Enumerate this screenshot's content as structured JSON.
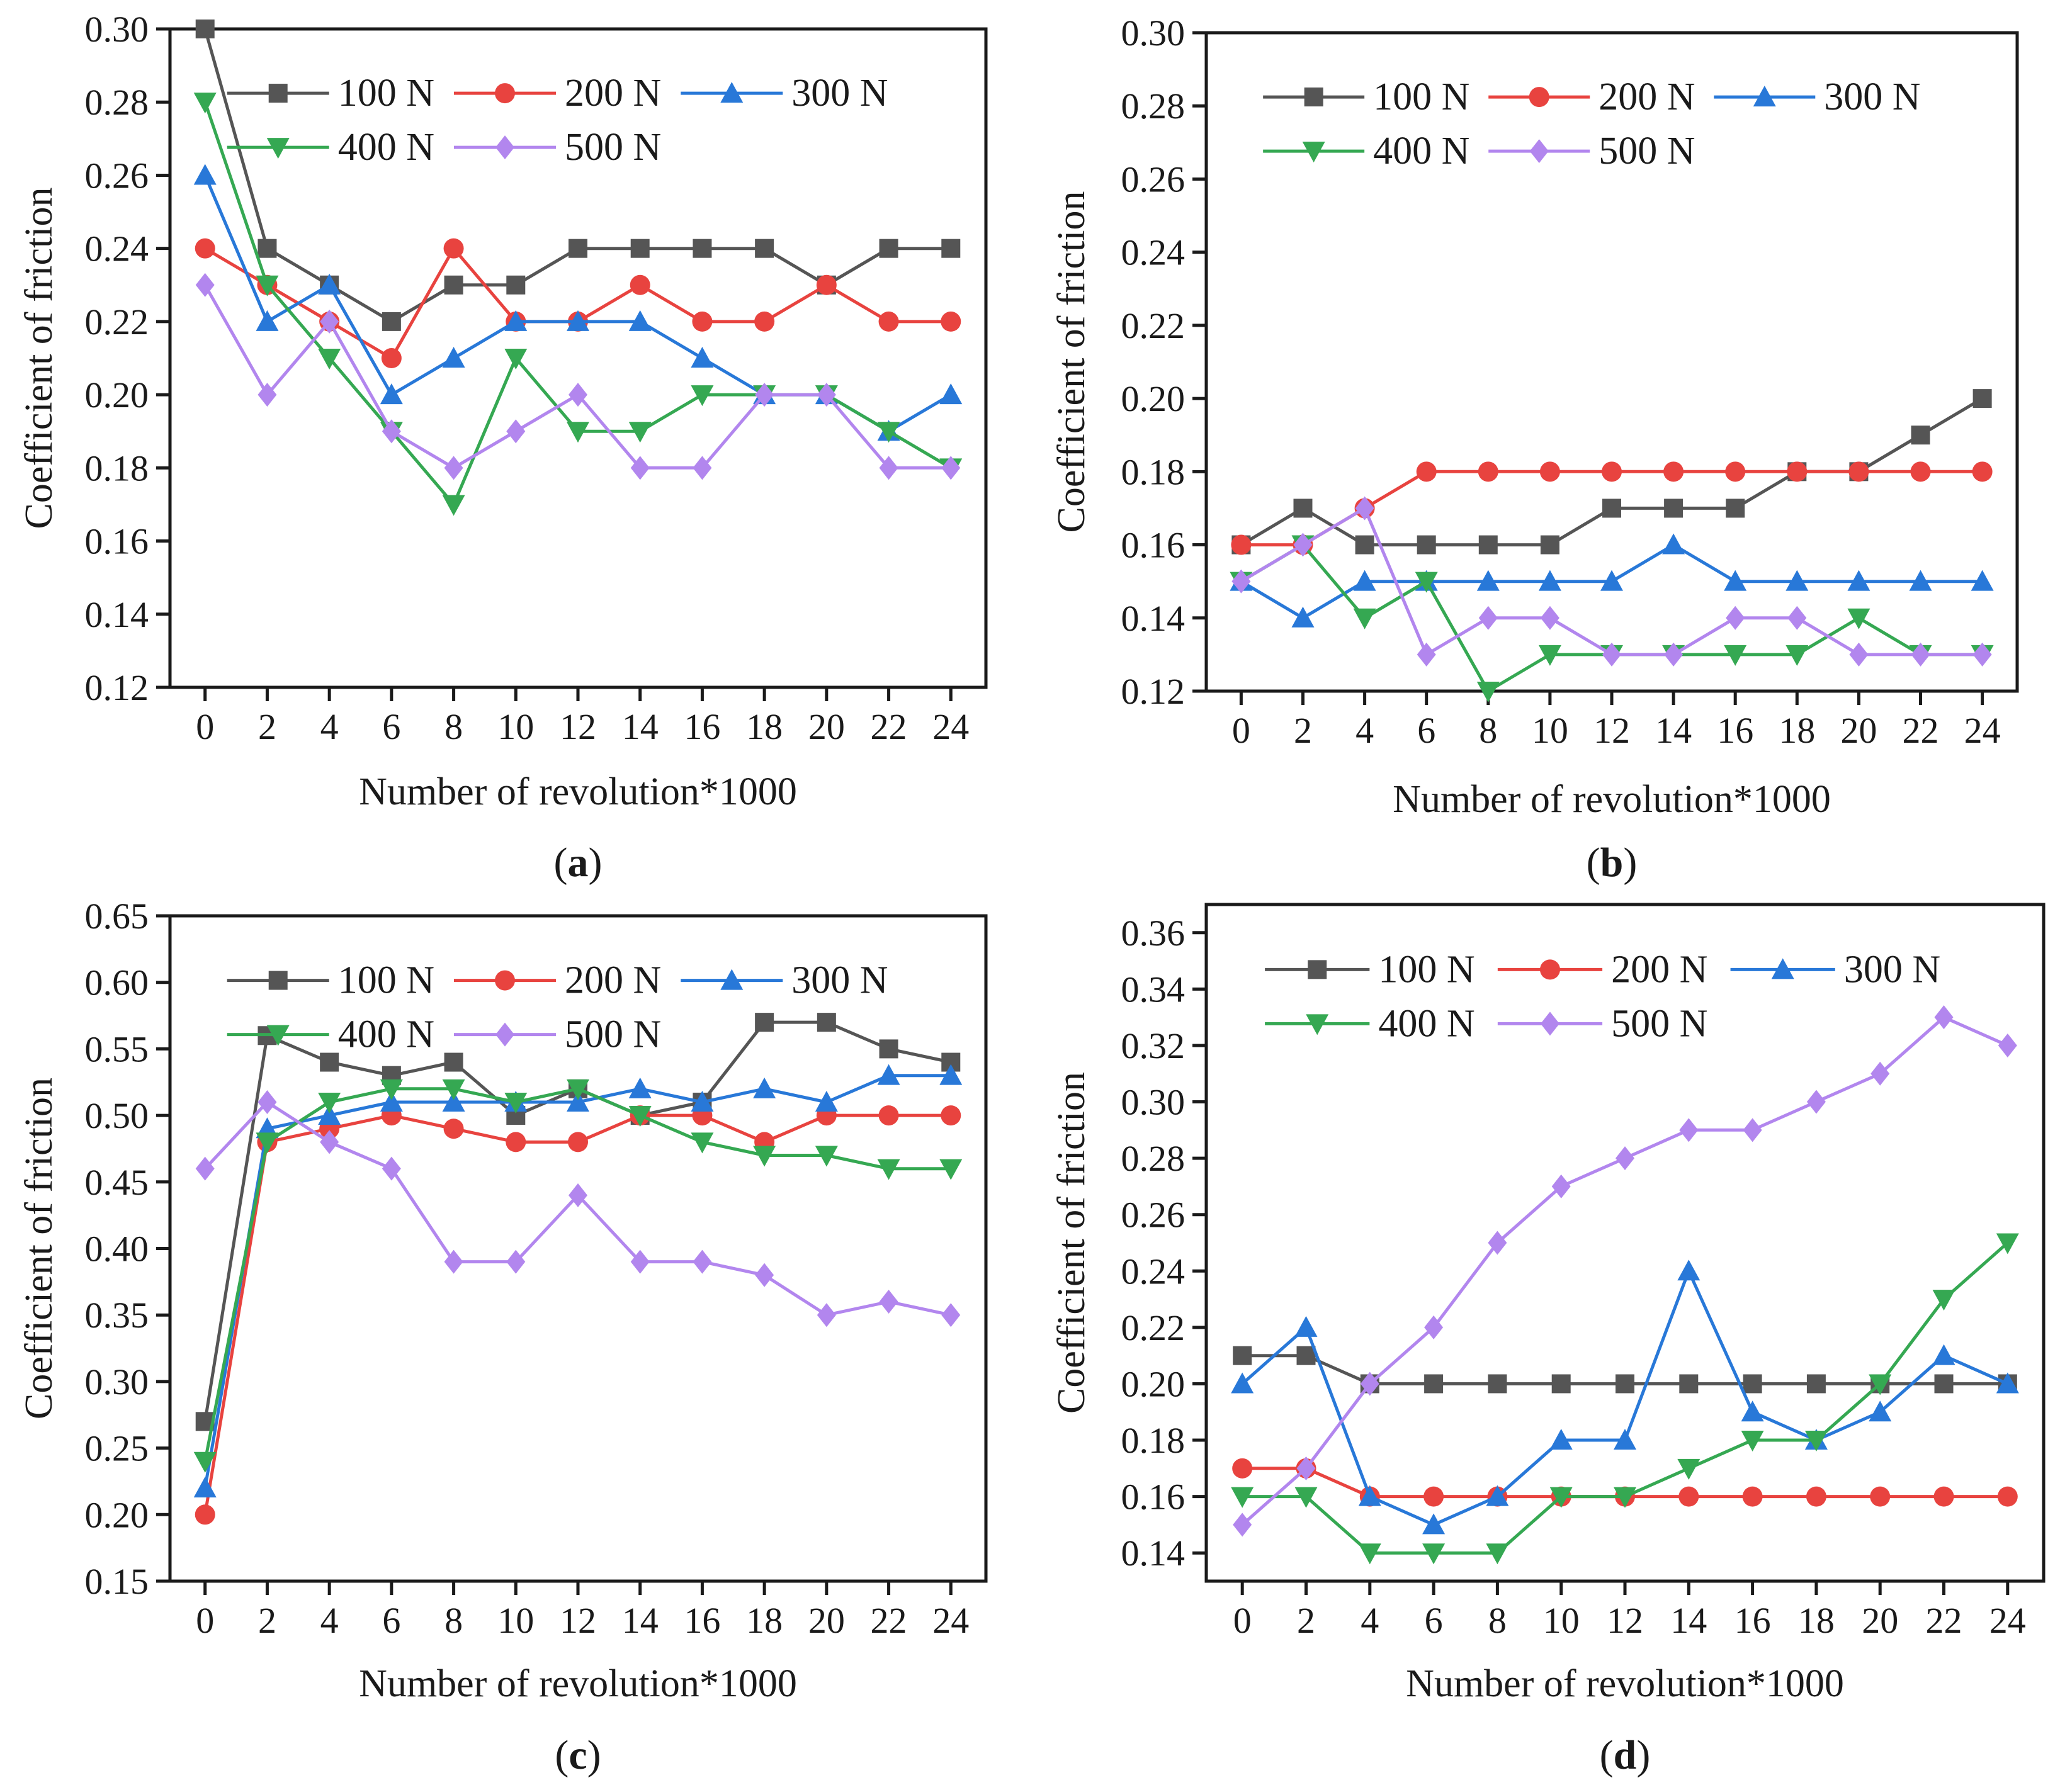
{
  "colors": {
    "100 N": "#555555",
    "200 N": "#e8433f",
    "300 N": "#2878d8",
    "400 N": "#35a852",
    "500 N": "#b286ee"
  },
  "markers": {
    "100 N": "square",
    "200 N": "circle",
    "300 N": "triangle-up",
    "400 N": "triangle-down",
    "500 N": "diamond"
  },
  "chart_data": [
    {
      "panel": "a",
      "type": "line",
      "title": "",
      "xlabel": "Number of revolution*1000",
      "ylabel": "Coefficient of friction",
      "x": [
        0,
        2,
        4,
        6,
        8,
        10,
        12,
        14,
        16,
        18,
        20,
        22,
        24
      ],
      "xticks": [
        "0",
        "2",
        "4",
        "6",
        "8",
        "10",
        "12",
        "14",
        "16",
        "18",
        "20",
        "22",
        "24"
      ],
      "ylim": [
        0.12,
        0.3
      ],
      "yticks": [
        "0.12",
        "0.14",
        "0.16",
        "0.18",
        "0.20",
        "0.22",
        "0.24",
        "0.26",
        "0.28",
        "0.30"
      ],
      "grid": false,
      "legend": "top-right",
      "series": [
        {
          "name": "100 N",
          "values": [
            0.3,
            0.24,
            0.23,
            0.22,
            0.23,
            0.23,
            0.24,
            0.24,
            0.24,
            0.24,
            0.23,
            0.24,
            0.24
          ]
        },
        {
          "name": "200 N",
          "values": [
            0.24,
            0.23,
            0.22,
            0.21,
            0.24,
            0.22,
            0.22,
            0.23,
            0.22,
            0.22,
            0.23,
            0.22,
            0.22
          ]
        },
        {
          "name": "300 N",
          "values": [
            0.26,
            0.22,
            0.23,
            0.2,
            0.21,
            0.22,
            0.22,
            0.22,
            0.21,
            0.2,
            0.2,
            0.19,
            0.2
          ]
        },
        {
          "name": "400 N",
          "values": [
            0.28,
            0.23,
            0.21,
            0.19,
            0.17,
            0.21,
            0.19,
            0.19,
            0.2,
            0.2,
            0.2,
            0.19,
            0.18
          ]
        },
        {
          "name": "500 N",
          "values": [
            0.23,
            0.2,
            0.22,
            0.19,
            0.18,
            0.19,
            0.2,
            0.18,
            0.18,
            0.2,
            0.2,
            0.18,
            0.18
          ]
        }
      ]
    },
    {
      "panel": "b",
      "type": "line",
      "title": "",
      "xlabel": "Number of revolution*1000",
      "ylabel": "Coefficient of friction",
      "x": [
        0,
        2,
        4,
        6,
        8,
        10,
        12,
        14,
        16,
        18,
        20,
        22,
        24
      ],
      "xticks": [
        "0",
        "2",
        "4",
        "6",
        "8",
        "10",
        "12",
        "14",
        "16",
        "18",
        "20",
        "22",
        "24"
      ],
      "ylim": [
        0.12,
        0.3
      ],
      "yticks": [
        "0.12",
        "0.14",
        "0.16",
        "0.18",
        "0.20",
        "0.22",
        "0.24",
        "0.26",
        "0.28",
        "0.30"
      ],
      "grid": false,
      "legend": "top-right",
      "series": [
        {
          "name": "100 N",
          "values": [
            0.16,
            0.17,
            0.16,
            0.16,
            0.16,
            0.16,
            0.17,
            0.17,
            0.17,
            0.18,
            0.18,
            0.19,
            0.2
          ]
        },
        {
          "name": "200 N",
          "values": [
            0.16,
            0.16,
            0.17,
            0.18,
            0.18,
            0.18,
            0.18,
            0.18,
            0.18,
            0.18,
            0.18,
            0.18,
            0.18
          ]
        },
        {
          "name": "300 N",
          "values": [
            0.15,
            0.14,
            0.15,
            0.15,
            0.15,
            0.15,
            0.15,
            0.16,
            0.15,
            0.15,
            0.15,
            0.15,
            0.15
          ]
        },
        {
          "name": "400 N",
          "values": [
            0.15,
            0.16,
            0.14,
            0.15,
            0.12,
            0.13,
            0.13,
            0.13,
            0.13,
            0.13,
            0.14,
            0.13,
            0.13
          ]
        },
        {
          "name": "500 N",
          "values": [
            0.15,
            0.16,
            0.17,
            0.13,
            0.14,
            0.14,
            0.13,
            0.13,
            0.14,
            0.14,
            0.13,
            0.13,
            0.13
          ]
        }
      ]
    },
    {
      "panel": "c",
      "type": "line",
      "title": "",
      "xlabel": "Number of revolution*1000",
      "ylabel": "Coefficient of friction",
      "x": [
        0,
        2,
        4,
        6,
        8,
        10,
        12,
        14,
        16,
        18,
        20,
        22,
        24
      ],
      "xticks": [
        "0",
        "2",
        "4",
        "6",
        "8",
        "10",
        "12",
        "14",
        "16",
        "18",
        "20",
        "22",
        "24"
      ],
      "ylim": [
        0.15,
        0.65
      ],
      "yticks": [
        "0.15",
        "0.20",
        "0.25",
        "0.30",
        "0.35",
        "0.40",
        "0.45",
        "0.50",
        "0.55",
        "0.60",
        "0.65"
      ],
      "grid": false,
      "legend": "top-right",
      "series": [
        {
          "name": "100 N",
          "values": [
            0.27,
            0.56,
            0.54,
            0.53,
            0.54,
            0.5,
            0.52,
            0.5,
            0.51,
            0.57,
            0.57,
            0.55,
            0.54
          ]
        },
        {
          "name": "200 N",
          "values": [
            0.2,
            0.48,
            0.49,
            0.5,
            0.49,
            0.48,
            0.48,
            0.5,
            0.5,
            0.48,
            0.5,
            0.5,
            0.5
          ]
        },
        {
          "name": "300 N",
          "values": [
            0.22,
            0.49,
            0.5,
            0.51,
            0.51,
            0.51,
            0.51,
            0.52,
            0.51,
            0.52,
            0.51,
            0.53,
            0.53
          ]
        },
        {
          "name": "400 N",
          "values": [
            0.24,
            0.48,
            0.51,
            0.52,
            0.52,
            0.51,
            0.52,
            0.5,
            0.48,
            0.47,
            0.47,
            0.46,
            0.46
          ]
        },
        {
          "name": "500 N",
          "values": [
            0.46,
            0.51,
            0.48,
            0.46,
            0.39,
            0.39,
            0.44,
            0.39,
            0.39,
            0.38,
            0.35,
            0.36,
            0.35
          ]
        }
      ]
    },
    {
      "panel": "d",
      "type": "line",
      "title": "",
      "xlabel": "Number of revolution*1000",
      "ylabel": "Coefficient of friction",
      "x": [
        0,
        2,
        4,
        6,
        8,
        10,
        12,
        14,
        16,
        18,
        20,
        22,
        24
      ],
      "xticks": [
        "0",
        "2",
        "4",
        "6",
        "8",
        "10",
        "12",
        "14",
        "16",
        "18",
        "20",
        "22",
        "24"
      ],
      "ylim": [
        0.13,
        0.37
      ],
      "yticks": [
        "0.14",
        "0.16",
        "0.18",
        "0.20",
        "0.22",
        "0.24",
        "0.26",
        "0.28",
        "0.30",
        "0.32",
        "0.34",
        "0.36"
      ],
      "grid": false,
      "legend": "top-right",
      "series": [
        {
          "name": "100 N",
          "values": [
            0.21,
            0.21,
            0.2,
            0.2,
            0.2,
            0.2,
            0.2,
            0.2,
            0.2,
            0.2,
            0.2,
            0.2,
            0.2
          ]
        },
        {
          "name": "200 N",
          "values": [
            0.17,
            0.17,
            0.16,
            0.16,
            0.16,
            0.16,
            0.16,
            0.16,
            0.16,
            0.16,
            0.16,
            0.16,
            0.16
          ]
        },
        {
          "name": "300 N",
          "values": [
            0.2,
            0.22,
            0.16,
            0.15,
            0.16,
            0.18,
            0.18,
            0.24,
            0.19,
            0.18,
            0.19,
            0.21,
            0.2
          ]
        },
        {
          "name": "400 N",
          "values": [
            0.16,
            0.16,
            0.14,
            0.14,
            0.14,
            0.16,
            0.16,
            0.17,
            0.18,
            0.18,
            0.2,
            0.23,
            0.25
          ]
        },
        {
          "name": "500 N",
          "values": [
            0.15,
            0.17,
            0.2,
            0.22,
            0.25,
            0.27,
            0.28,
            0.29,
            0.29,
            0.3,
            0.31,
            0.33,
            0.32
          ]
        }
      ]
    }
  ]
}
